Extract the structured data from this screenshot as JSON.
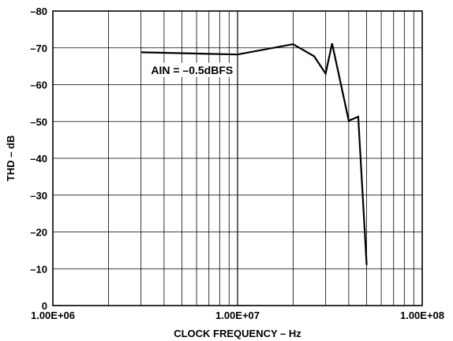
{
  "chart_data": {
    "type": "line",
    "xscale": "log",
    "xlim": [
      1000000,
      100000000
    ],
    "ylim": [
      0,
      -80
    ],
    "xlabel": "CLOCK FREQUENCY – Hz",
    "ylabel": "THD – dB",
    "x_tick_labels": [
      {
        "value": 1000000,
        "label": "1.00E+06"
      },
      {
        "value": 10000000,
        "label": "1.00E+07"
      },
      {
        "value": 100000000,
        "label": "1.00E+08"
      }
    ],
    "y_tick_labels": [
      {
        "value": 0,
        "label": "0"
      },
      {
        "value": -10,
        "label": "–10"
      },
      {
        "value": -20,
        "label": "–20"
      },
      {
        "value": -30,
        "label": "–30"
      },
      {
        "value": -40,
        "label": "–40"
      },
      {
        "value": -50,
        "label": "–50"
      },
      {
        "value": -60,
        "label": "–60"
      },
      {
        "value": -70,
        "label": "–70"
      },
      {
        "value": -80,
        "label": "–80"
      }
    ],
    "grid": true,
    "annotation": {
      "text": "AIN = –0.5dBFS",
      "x": 3400000,
      "y": -64
    },
    "series": [
      {
        "x": [
          3000000,
          10000000,
          20000000,
          26000000,
          30000000,
          32500000,
          40000000,
          45000000,
          50000000
        ],
        "y": [
          -68.8,
          -68.2,
          -71,
          -67.7,
          -63,
          -71.2,
          -50.2,
          -51.3,
          -11
        ]
      }
    ],
    "colors": {
      "line": "#000000",
      "grid": "#000000",
      "background": "#ffffff"
    }
  }
}
